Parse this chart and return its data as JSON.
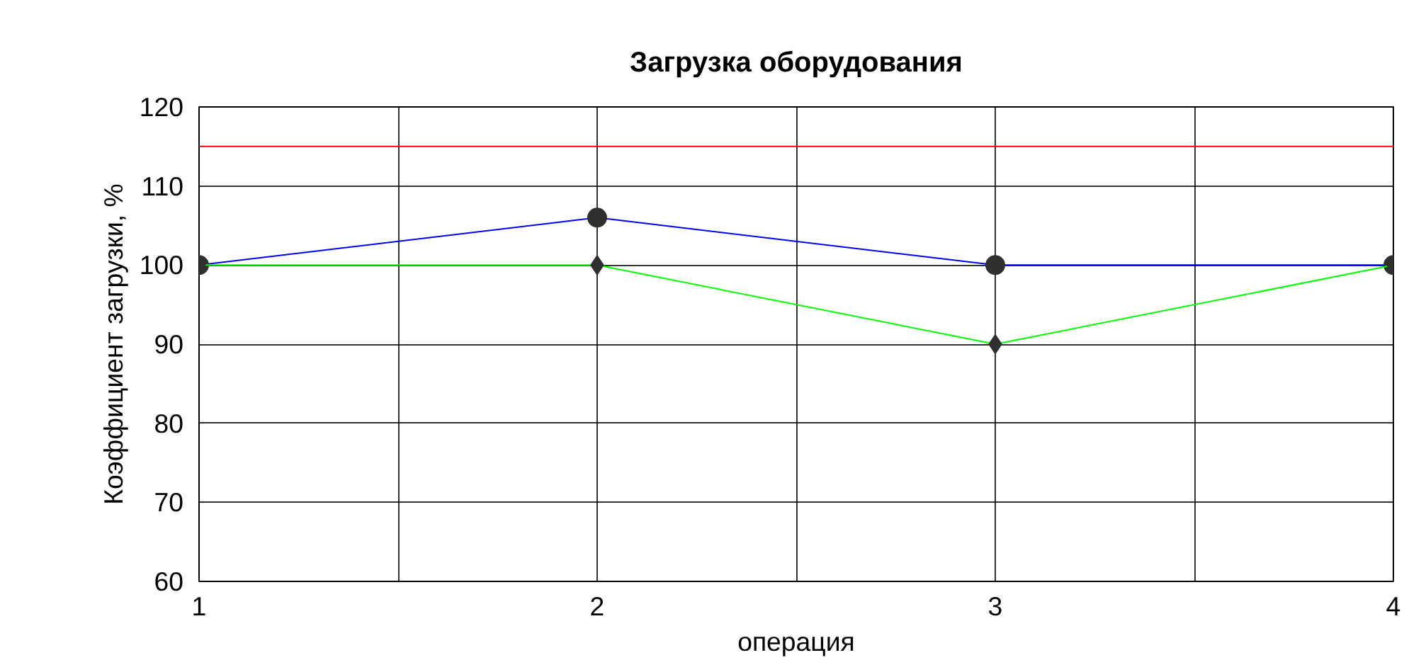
{
  "chart_data": {
    "type": "line",
    "title": "Загрузка оборудования",
    "xlabel": "операция",
    "ylabel": "Коэффициент загрузки, %",
    "x": [
      1,
      2,
      3,
      4
    ],
    "series": [
      {
        "color": "#0000ff",
        "values": [
          100,
          106,
          100,
          100
        ],
        "marker": "circle"
      },
      {
        "color": "#00ff00",
        "values": [
          100,
          100,
          90,
          100
        ],
        "marker": "diamond"
      }
    ],
    "xlim": [
      1,
      4
    ],
    "xticks": [
      1,
      {
        "value": 1.5,
        "label": null
      },
      2,
      {
        "value": 2.5,
        "label": null
      },
      3,
      {
        "value": 3.5,
        "label": null
      },
      4
    ],
    "ylim": [
      60,
      120
    ],
    "yticks": [
      60,
      70,
      80,
      90,
      100,
      110,
      120
    ],
    "ref_lines": [
      {
        "axis": "y",
        "value": 115,
        "color": "#ff0000"
      }
    ],
    "grid": true
  }
}
